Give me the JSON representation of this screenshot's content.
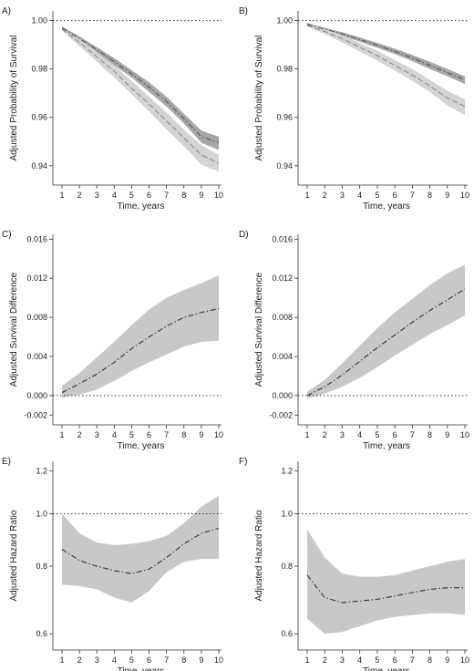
{
  "chart_data": [
    {
      "panel": "A)",
      "type": "line",
      "ylabel": "Adjusted Probability of Survival",
      "xlabel": "Time, years",
      "x": [
        1,
        2,
        3,
        4,
        5,
        6,
        7,
        8,
        9,
        10
      ],
      "xticks": [
        1,
        2,
        3,
        4,
        5,
        6,
        7,
        8,
        9,
        10
      ],
      "ylim": [
        0.932,
        1.004
      ],
      "yticks": [
        0.94,
        0.96,
        0.98,
        1.0
      ],
      "ytick_labels": [
        "0.94",
        "0.96",
        "0.98",
        "1.00"
      ],
      "reference_line": 1.0,
      "series": [
        {
          "style": "dash-dot",
          "color": "#555555",
          "band_color": "#a6a6a6",
          "values": [
            0.997,
            0.9925,
            0.988,
            0.983,
            0.978,
            0.9725,
            0.9665,
            0.9595,
            0.952,
            0.9495
          ],
          "lower": [
            0.9965,
            0.9915,
            0.9865,
            0.9815,
            0.9765,
            0.9705,
            0.9645,
            0.9575,
            0.9495,
            0.9465
          ],
          "upper": [
            0.9975,
            0.9935,
            0.989,
            0.9845,
            0.9795,
            0.9745,
            0.9685,
            0.9615,
            0.9545,
            0.952
          ]
        },
        {
          "style": "dashed",
          "color": "#8a8a8a",
          "band_color": "#d4d4d4",
          "values": [
            0.9965,
            0.991,
            0.985,
            0.979,
            0.972,
            0.9655,
            0.9585,
            0.9515,
            0.9445,
            0.941
          ],
          "lower": [
            0.996,
            0.9895,
            0.983,
            0.9765,
            0.9695,
            0.9625,
            0.955,
            0.948,
            0.9405,
            0.9375
          ],
          "upper": [
            0.997,
            0.9925,
            0.987,
            0.9815,
            0.975,
            0.9685,
            0.962,
            0.955,
            0.9485,
            0.9445
          ]
        }
      ]
    },
    {
      "panel": "B)",
      "type": "line",
      "ylabel": "Adjusted Probability of Survival",
      "xlabel": "Time, years",
      "x": [
        1,
        2,
        3,
        4,
        5,
        6,
        7,
        8,
        9,
        10
      ],
      "xticks": [
        1,
        2,
        3,
        4,
        5,
        6,
        7,
        8,
        9,
        10
      ],
      "ylim": [
        0.932,
        1.004
      ],
      "yticks": [
        0.94,
        0.96,
        0.98,
        1.0
      ],
      "ytick_labels": [
        "0.94",
        "0.96",
        "0.98",
        "1.00"
      ],
      "reference_line": 1.0,
      "series": [
        {
          "style": "dash-dot",
          "color": "#555555",
          "band_color": "#a6a6a6",
          "values": [
            0.9985,
            0.9965,
            0.9945,
            0.9922,
            0.9898,
            0.9873,
            0.9845,
            0.9815,
            0.9785,
            0.9755
          ],
          "lower": [
            0.998,
            0.996,
            0.9938,
            0.9913,
            0.9888,
            0.9862,
            0.9832,
            0.98,
            0.977,
            0.9738
          ],
          "upper": [
            0.999,
            0.997,
            0.9952,
            0.993,
            0.9908,
            0.9884,
            0.9858,
            0.983,
            0.98,
            0.977
          ]
        },
        {
          "style": "dashed",
          "color": "#8a8a8a",
          "band_color": "#d4d4d4",
          "values": [
            0.998,
            0.9955,
            0.9925,
            0.989,
            0.9855,
            0.9815,
            0.9775,
            0.973,
            0.968,
            0.9645
          ],
          "lower": [
            0.9975,
            0.9945,
            0.991,
            0.9872,
            0.9835,
            0.9793,
            0.975,
            0.9705,
            0.965,
            0.961
          ],
          "upper": [
            0.9985,
            0.9965,
            0.994,
            0.9908,
            0.9875,
            0.9837,
            0.98,
            0.9755,
            0.971,
            0.9675
          ]
        }
      ]
    },
    {
      "panel": "C)",
      "type": "line",
      "ylabel": "Adjusted Survival Difference",
      "xlabel": "Time, years",
      "x": [
        1,
        2,
        3,
        4,
        5,
        6,
        7,
        8,
        9,
        10
      ],
      "xticks": [
        1,
        2,
        3,
        4,
        5,
        6,
        7,
        8,
        9,
        10
      ],
      "ylim": [
        -0.003,
        0.0165
      ],
      "yticks": [
        -0.002,
        0.0,
        0.004,
        0.008,
        0.012,
        0.016
      ],
      "ytick_labels": [
        "-0.002",
        "0.000",
        "0.004",
        "0.008",
        "0.012",
        "0.016"
      ],
      "reference_line": 0.0,
      "series": [
        {
          "style": "dash-dot",
          "color": "#333333",
          "band_color": "#c8c8c8",
          "values": [
            0.0003,
            0.0012,
            0.0022,
            0.0034,
            0.0048,
            0.006,
            0.0071,
            0.008,
            0.0085,
            0.0089
          ],
          "lower": [
            -0.0002,
            0.0001,
            0.0006,
            0.0015,
            0.0025,
            0.0034,
            0.0042,
            0.005,
            0.0055,
            0.0056
          ],
          "upper": [
            0.001,
            0.0023,
            0.0039,
            0.0055,
            0.0072,
            0.0088,
            0.01,
            0.0108,
            0.0115,
            0.0123
          ]
        }
      ]
    },
    {
      "panel": "D)",
      "type": "line",
      "ylabel": "Adjusted Survival Difference",
      "xlabel": "Time, years",
      "x": [
        1,
        2,
        3,
        4,
        5,
        6,
        7,
        8,
        9,
        10
      ],
      "xticks": [
        1,
        2,
        3,
        4,
        5,
        6,
        7,
        8,
        9,
        10
      ],
      "ylim": [
        -0.003,
        0.0165
      ],
      "yticks": [
        -0.002,
        0.0,
        0.004,
        0.008,
        0.012,
        0.016
      ],
      "ytick_labels": [
        "-0.002",
        "0.000",
        "0.004",
        "0.008",
        "0.012",
        "0.016"
      ],
      "reference_line": 0.0,
      "series": [
        {
          "style": "dash-dot",
          "color": "#333333",
          "band_color": "#c8c8c8",
          "values": [
            0.0,
            0.0009,
            0.0021,
            0.0035,
            0.0049,
            0.0062,
            0.0075,
            0.0087,
            0.0098,
            0.0109
          ],
          "lower": [
            -0.0003,
            0.0002,
            0.0009,
            0.0018,
            0.0029,
            0.0041,
            0.0052,
            0.0063,
            0.0072,
            0.0082
          ],
          "upper": [
            0.0004,
            0.0016,
            0.0033,
            0.0051,
            0.0069,
            0.0085,
            0.0099,
            0.0113,
            0.0125,
            0.0134
          ]
        }
      ]
    },
    {
      "panel": "E)",
      "type": "line",
      "ylabel": "Adjusted Hazard Ratio",
      "xlabel": "Time, years",
      "x": [
        1,
        2,
        3,
        4,
        5,
        6,
        7,
        8,
        9,
        10
      ],
      "xticks": [
        1,
        2,
        3,
        4,
        5,
        6,
        7,
        8,
        9,
        10
      ],
      "ylim": [
        0.56,
        1.25
      ],
      "log_scale_y": true,
      "yticks": [
        0.6,
        0.8,
        1.0,
        1.2
      ],
      "ytick_labels": [
        "0.6",
        "0.8",
        "1.0",
        "1.2"
      ],
      "reference_line": 1.0,
      "series": [
        {
          "style": "dash-dot",
          "color": "#333333",
          "band_color": "#c8c8c8",
          "values": [
            0.86,
            0.82,
            0.8,
            0.785,
            0.775,
            0.79,
            0.83,
            0.88,
            0.92,
            0.94
          ],
          "lower": [
            0.74,
            0.735,
            0.725,
            0.7,
            0.685,
            0.72,
            0.78,
            0.815,
            0.825,
            0.825
          ],
          "upper": [
            1.0,
            0.92,
            0.885,
            0.875,
            0.88,
            0.89,
            0.91,
            0.96,
            1.03,
            1.08
          ]
        }
      ]
    },
    {
      "panel": "F)",
      "type": "line",
      "ylabel": "Adjusted Hazard Ratio",
      "xlabel": "Time, years",
      "x": [
        1,
        2,
        3,
        4,
        5,
        6,
        7,
        8,
        9,
        10
      ],
      "xticks": [
        1,
        2,
        3,
        4,
        5,
        6,
        7,
        8,
        9,
        10
      ],
      "ylim": [
        0.56,
        1.25
      ],
      "log_scale_y": true,
      "yticks": [
        0.6,
        0.8,
        1.0,
        1.2
      ],
      "ytick_labels": [
        "0.6",
        "0.8",
        "1.0",
        "1.2"
      ],
      "reference_line": 1.0,
      "series": [
        {
          "style": "dash-dot",
          "color": "#333333",
          "band_color": "#c8c8c8",
          "values": [
            0.77,
            0.7,
            0.685,
            0.69,
            0.695,
            0.705,
            0.715,
            0.725,
            0.73,
            0.73
          ],
          "lower": [
            0.64,
            0.6,
            0.605,
            0.62,
            0.635,
            0.645,
            0.65,
            0.655,
            0.655,
            0.65
          ],
          "upper": [
            0.935,
            0.83,
            0.775,
            0.765,
            0.765,
            0.77,
            0.785,
            0.8,
            0.815,
            0.825
          ]
        }
      ]
    }
  ]
}
